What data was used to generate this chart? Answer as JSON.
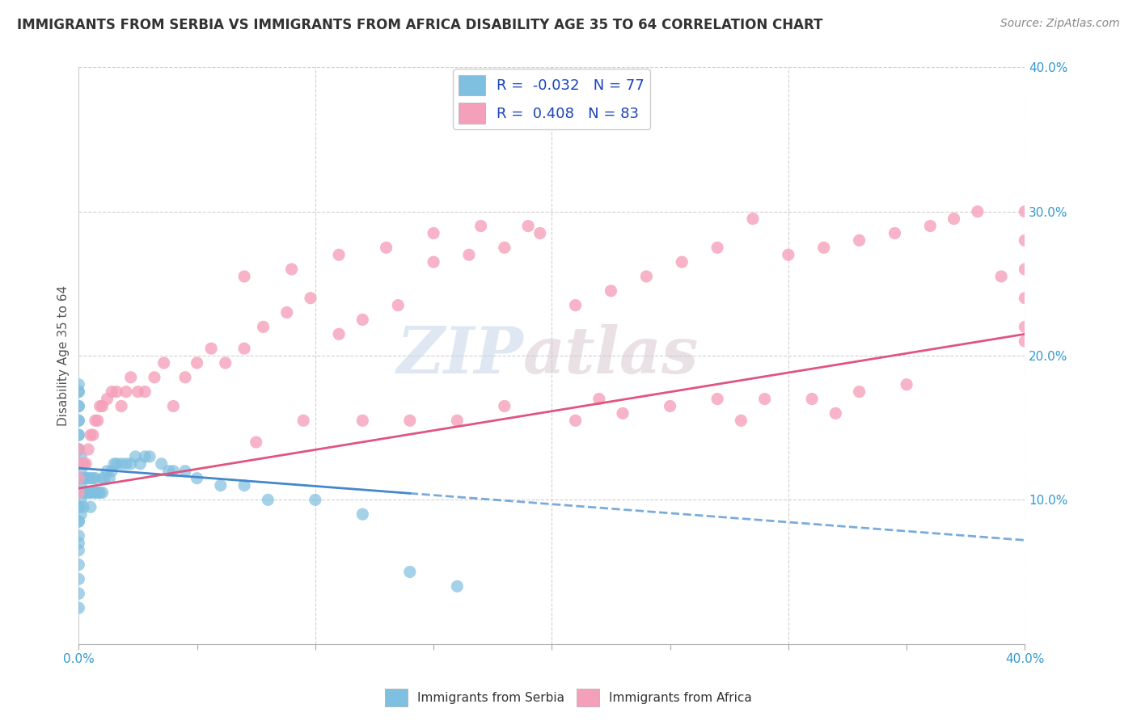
{
  "title": "IMMIGRANTS FROM SERBIA VS IMMIGRANTS FROM AFRICA DISABILITY AGE 35 TO 64 CORRELATION CHART",
  "source": "Source: ZipAtlas.com",
  "ylabel": "Disability Age 35 to 64",
  "xlim": [
    0.0,
    0.4
  ],
  "ylim": [
    0.0,
    0.4
  ],
  "serbia_R": -0.032,
  "serbia_N": 77,
  "africa_R": 0.408,
  "africa_N": 83,
  "serbia_color": "#7fbfdf",
  "africa_color": "#f5a0ba",
  "serbia_trend_color": "#4488cc",
  "africa_trend_color": "#e05580",
  "background_color": "#ffffff",
  "grid_color": "#cccccc",
  "watermark": "ZIPatlas",
  "legend_R_color": "#1a44bb",
  "serbia_scatter_x": [
    0.0,
    0.0,
    0.0,
    0.0,
    0.0,
    0.0,
    0.0,
    0.0,
    0.0,
    0.0,
    0.0,
    0.0,
    0.0,
    0.0,
    0.0,
    0.0,
    0.0,
    0.0,
    0.0,
    0.0,
    0.0,
    0.0,
    0.0,
    0.0,
    0.0,
    0.0,
    0.0,
    0.0,
    0.001,
    0.001,
    0.001,
    0.001,
    0.001,
    0.002,
    0.002,
    0.002,
    0.002,
    0.003,
    0.003,
    0.004,
    0.004,
    0.005,
    0.005,
    0.005,
    0.006,
    0.006,
    0.007,
    0.007,
    0.008,
    0.009,
    0.01,
    0.01,
    0.011,
    0.012,
    0.013,
    0.014,
    0.015,
    0.016,
    0.018,
    0.02,
    0.022,
    0.024,
    0.026,
    0.028,
    0.03,
    0.035,
    0.038,
    0.04,
    0.045,
    0.05,
    0.06,
    0.07,
    0.08,
    0.1,
    0.12,
    0.14,
    0.16
  ],
  "serbia_scatter_y": [
    0.125,
    0.135,
    0.145,
    0.155,
    0.165,
    0.175,
    0.18,
    0.175,
    0.165,
    0.155,
    0.145,
    0.135,
    0.125,
    0.115,
    0.115,
    0.105,
    0.105,
    0.095,
    0.095,
    0.085,
    0.085,
    0.075,
    0.07,
    0.065,
    0.055,
    0.045,
    0.035,
    0.025,
    0.13,
    0.12,
    0.11,
    0.1,
    0.09,
    0.125,
    0.115,
    0.105,
    0.095,
    0.115,
    0.105,
    0.115,
    0.105,
    0.115,
    0.105,
    0.095,
    0.115,
    0.105,
    0.115,
    0.105,
    0.105,
    0.105,
    0.115,
    0.105,
    0.115,
    0.12,
    0.115,
    0.12,
    0.125,
    0.125,
    0.125,
    0.125,
    0.125,
    0.13,
    0.125,
    0.13,
    0.13,
    0.125,
    0.12,
    0.12,
    0.12,
    0.115,
    0.11,
    0.11,
    0.1,
    0.1,
    0.09,
    0.05,
    0.04
  ],
  "africa_scatter_x": [
    0.0,
    0.0,
    0.0,
    0.001,
    0.002,
    0.003,
    0.004,
    0.005,
    0.006,
    0.007,
    0.008,
    0.009,
    0.01,
    0.012,
    0.014,
    0.016,
    0.018,
    0.02,
    0.022,
    0.025,
    0.028,
    0.032,
    0.036,
    0.04,
    0.045,
    0.05,
    0.056,
    0.062,
    0.07,
    0.078,
    0.088,
    0.098,
    0.11,
    0.12,
    0.135,
    0.15,
    0.165,
    0.18,
    0.195,
    0.21,
    0.225,
    0.24,
    0.255,
    0.27,
    0.285,
    0.3,
    0.315,
    0.33,
    0.345,
    0.36,
    0.37,
    0.38,
    0.39,
    0.4,
    0.4,
    0.4,
    0.4,
    0.4,
    0.4,
    0.07,
    0.09,
    0.11,
    0.13,
    0.15,
    0.17,
    0.19,
    0.21,
    0.23,
    0.25,
    0.27,
    0.29,
    0.31,
    0.33,
    0.35,
    0.28,
    0.32,
    0.18,
    0.22,
    0.16,
    0.14,
    0.12,
    0.095,
    0.075
  ],
  "africa_scatter_y": [
    0.135,
    0.115,
    0.105,
    0.125,
    0.125,
    0.125,
    0.135,
    0.145,
    0.145,
    0.155,
    0.155,
    0.165,
    0.165,
    0.17,
    0.175,
    0.175,
    0.165,
    0.175,
    0.185,
    0.175,
    0.175,
    0.185,
    0.195,
    0.165,
    0.185,
    0.195,
    0.205,
    0.195,
    0.205,
    0.22,
    0.23,
    0.24,
    0.215,
    0.225,
    0.235,
    0.265,
    0.27,
    0.275,
    0.285,
    0.235,
    0.245,
    0.255,
    0.265,
    0.275,
    0.295,
    0.27,
    0.275,
    0.28,
    0.285,
    0.29,
    0.295,
    0.3,
    0.255,
    0.21,
    0.22,
    0.24,
    0.26,
    0.28,
    0.3,
    0.255,
    0.26,
    0.27,
    0.275,
    0.285,
    0.29,
    0.29,
    0.155,
    0.16,
    0.165,
    0.17,
    0.17,
    0.17,
    0.175,
    0.18,
    0.155,
    0.16,
    0.165,
    0.17,
    0.155,
    0.155,
    0.155,
    0.155,
    0.14
  ],
  "serbia_trend_x0": 0.0,
  "serbia_trend_x1": 0.4,
  "serbia_trend_y0": 0.122,
  "serbia_trend_y1": 0.072,
  "africa_trend_x0": 0.0,
  "africa_trend_x1": 0.4,
  "africa_trend_y0": 0.108,
  "africa_trend_y1": 0.215
}
